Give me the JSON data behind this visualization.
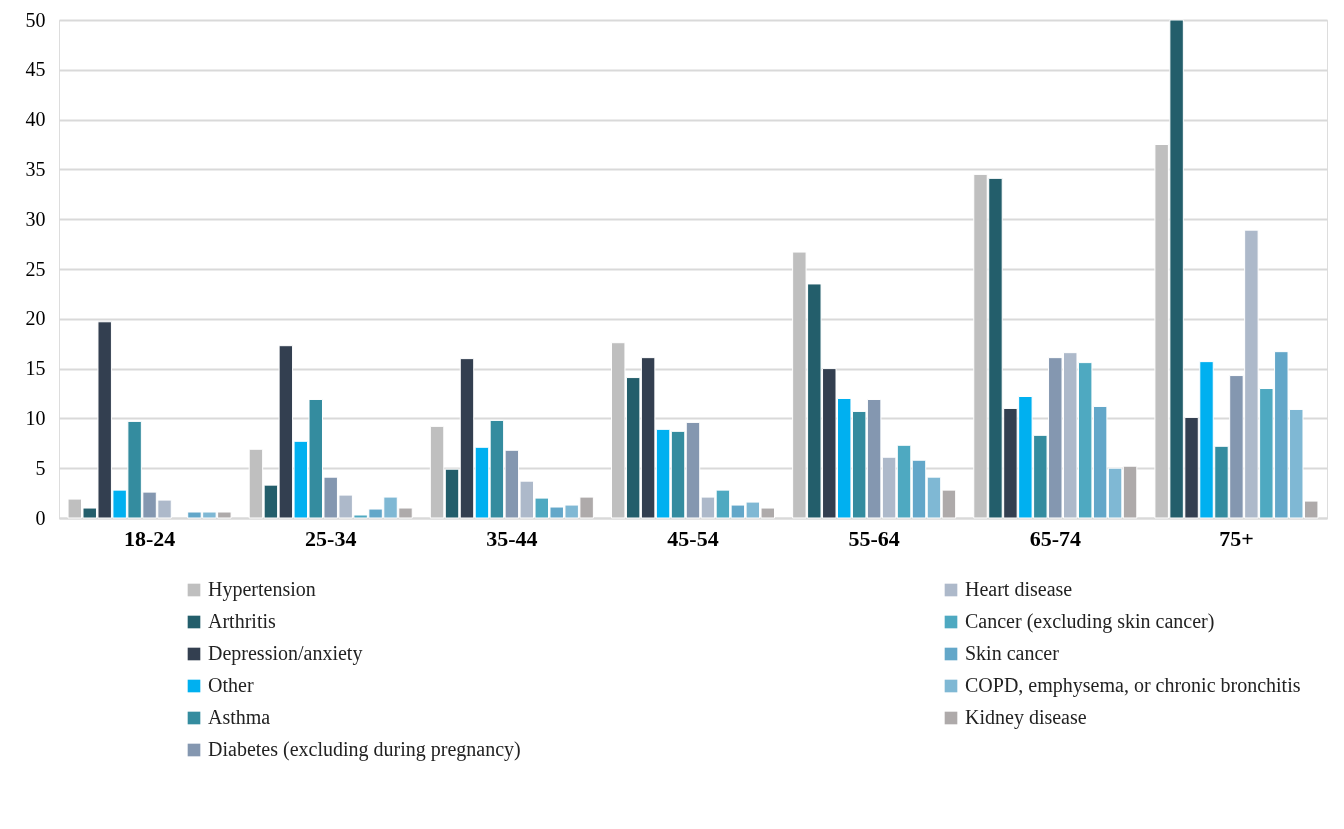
{
  "chart_data": {
    "type": "bar",
    "categories": [
      "18-24",
      "25-34",
      "35-44",
      "45-54",
      "55-64",
      "65-74",
      "75+"
    ],
    "ylim": [
      0,
      50
    ],
    "yticks": [
      0,
      5,
      10,
      15,
      20,
      25,
      30,
      35,
      40,
      45,
      50
    ],
    "grid": "y",
    "legend": "bottom",
    "series": [
      {
        "name": "Hypertension",
        "color": "#bfbfbf",
        "values": [
          1.9,
          6.9,
          9.2,
          17.6,
          26.7,
          34.5,
          37.5
        ]
      },
      {
        "name": "Arthritis",
        "color": "#235e6b",
        "values": [
          1.0,
          3.3,
          4.9,
          14.1,
          23.5,
          34.1,
          50.0
        ]
      },
      {
        "name": "Depression/anxiety",
        "color": "#333f50",
        "values": [
          19.7,
          17.3,
          16.0,
          16.1,
          15.0,
          11.0,
          10.1
        ]
      },
      {
        "name": "Other",
        "color": "#00b0f0",
        "values": [
          2.8,
          7.7,
          7.1,
          8.9,
          12.0,
          12.2,
          15.7
        ]
      },
      {
        "name": "Asthma",
        "color": "#348c9f",
        "values": [
          9.7,
          11.9,
          9.8,
          8.7,
          10.7,
          8.3,
          7.2
        ]
      },
      {
        "name": "Diabetes (excluding during pregnancy)",
        "color": "#8497b0",
        "values": [
          2.6,
          4.1,
          6.8,
          9.6,
          11.9,
          16.1,
          14.3
        ]
      },
      {
        "name": "Heart disease",
        "color": "#adb9ca",
        "values": [
          1.8,
          2.3,
          3.7,
          2.1,
          6.1,
          16.6,
          28.9
        ]
      },
      {
        "name": "Cancer (excluding skin cancer)",
        "color": "#4ea9c1",
        "values": [
          null,
          0.3,
          2.0,
          2.8,
          7.3,
          15.6,
          13.0
        ]
      },
      {
        "name": "Skin cancer",
        "color": "#63a7c9",
        "values": [
          0.6,
          0.9,
          1.1,
          1.3,
          5.8,
          11.2,
          16.7
        ]
      },
      {
        "name": "COPD, emphysema, or chronic bronchitis",
        "color": "#7fb8d4",
        "values": [
          0.6,
          2.1,
          1.3,
          1.6,
          4.1,
          5.0,
          10.9
        ]
      },
      {
        "name": "Kidney disease",
        "color": "#aeaaaa",
        "values": [
          0.6,
          1.0,
          2.1,
          1.0,
          2.8,
          5.2,
          1.7
        ]
      }
    ]
  }
}
